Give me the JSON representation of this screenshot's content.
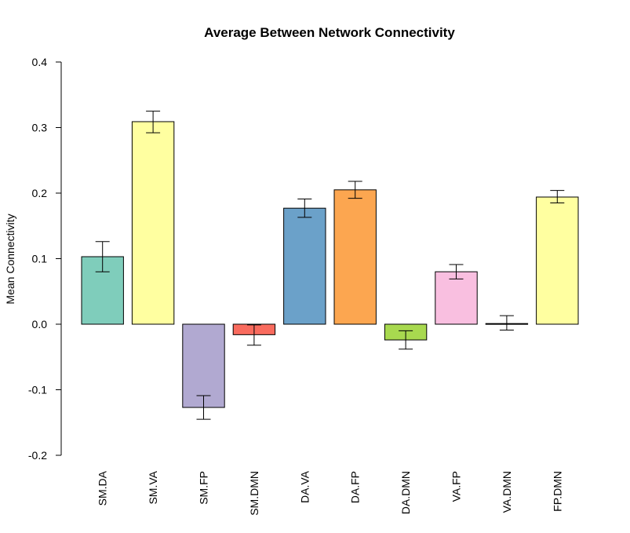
{
  "chart_data": {
    "type": "bar",
    "title": "Average Between Network Connectivity",
    "xlabel": "",
    "ylabel": "Mean Connectivity",
    "ylim": [
      -0.2,
      0.4
    ],
    "yticks": [
      -0.2,
      -0.1,
      0.0,
      0.1,
      0.2,
      0.3,
      0.4
    ],
    "ytick_labels": [
      "-0.2",
      "-0.1",
      "0.0",
      "0.1",
      "0.2",
      "0.3",
      "0.4"
    ],
    "grid": false,
    "categories": [
      "SM.DA",
      "SM.VA",
      "SM.FP",
      "SM.DMN",
      "DA.VA",
      "DA.FP",
      "DA.DMN",
      "VA.FP",
      "VA.DMN",
      "FP.DMN"
    ],
    "values": [
      0.103,
      0.309,
      -0.127,
      -0.016,
      0.177,
      0.205,
      -0.024,
      0.08,
      0.001,
      0.194
    ],
    "error_lower": [
      0.08,
      0.292,
      -0.145,
      -0.032,
      0.163,
      0.192,
      -0.038,
      0.069,
      -0.009,
      0.185
    ],
    "error_upper": [
      0.126,
      0.325,
      -0.109,
      -0.001,
      0.191,
      0.218,
      -0.01,
      0.091,
      0.013,
      0.204
    ],
    "colors": [
      "#7fcdbb",
      "#ffffa0",
      "#b1a9d1",
      "#f96b5e",
      "#6ba1c9",
      "#fca650",
      "#a8d94f",
      "#f9bfe0",
      "#d9d9d9",
      "#ffffa0"
    ]
  }
}
